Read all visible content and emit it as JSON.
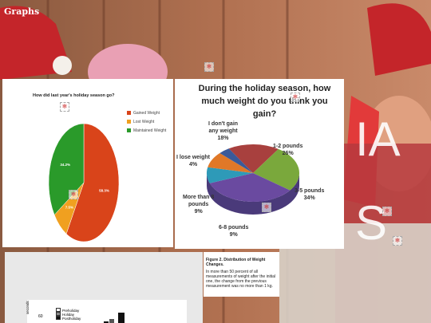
{
  "slide": {
    "title": "Graphs"
  },
  "colors": {
    "red": "#d9441a",
    "orange": "#f0a020",
    "green": "#2a9a2a"
  },
  "chart_data": [
    {
      "type": "pie",
      "title": "How did last year's holiday season go?",
      "legend_position": "right",
      "categories": [
        "Gained Weight",
        "Lost Weight",
        "Maintained Weight"
      ],
      "values": [
        58.3,
        7.5,
        34.2
      ],
      "labels": [
        "58.3%",
        "7.5%",
        "34.2%"
      ],
      "colors": [
        "#d9441a",
        "#f0a020",
        "#2a9a2a"
      ]
    },
    {
      "type": "pie",
      "title": "During the holiday season, how much weight do you think you gain?",
      "categories": [
        "I don't gain any weight",
        "1-2 pounds",
        "3-5 pounds",
        "6-8 pounds",
        "More than 8 pounds",
        "I lose weight"
      ],
      "values": [
        18,
        26,
        34,
        9,
        9,
        4
      ],
      "labels": [
        "I don't gain\nany weight\n18%",
        "1-2 pounds\n26%",
        "3-5 pounds\n34%",
        "6-8 pounds\n9%",
        "More than 8\npounds\n9%",
        "I lose weight\n4%"
      ],
      "colors": [
        "#a8403e",
        "#7aa83c",
        "#6a4aa0",
        "#2e9ab8",
        "#e07828",
        "#3a5a9a"
      ]
    },
    {
      "type": "bar",
      "legend": [
        "Preholiday",
        "Holiday",
        "Postholiday"
      ],
      "ylabel": "seconds",
      "yticks": [
        "60"
      ]
    }
  ],
  "caption": {
    "title": "Figure 2. Distribution of Weight Changes.",
    "body": "In more than 50 percent of all measurements of weight after the initial one, the change from the previous measurement was no more than 1 kg."
  }
}
